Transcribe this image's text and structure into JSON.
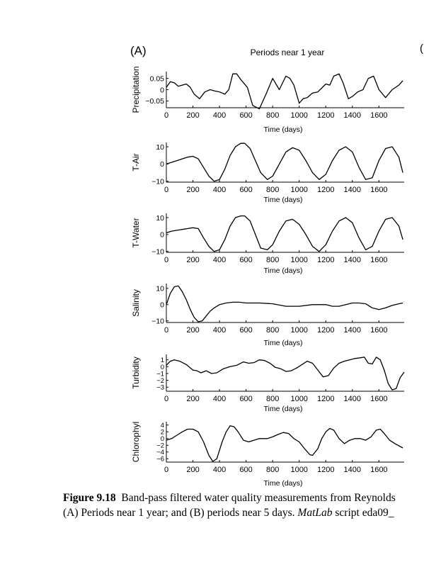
{
  "panel_label": "(A)",
  "panel_b_label": "(",
  "panel_title": "Periods near 1 year",
  "caption": {
    "label": "Figure 9.18",
    "line1_rest": "  Band-pass filtered water quality measurements from Reynolds",
    "line2_a": "(A) Periods near 1 year; and (B) periods near 5 days. ",
    "line2_italic": "MatLab",
    "line2_b": " script eda09_"
  },
  "chart_data": [
    {
      "type": "line",
      "ylabel": "Precipitation",
      "xlabel": "Time (days)",
      "xlim": [
        0,
        1790
      ],
      "xticks": [
        0,
        200,
        400,
        600,
        800,
        1000,
        1200,
        1400,
        1600
      ],
      "ylim": [
        -0.08,
        0.08
      ],
      "yticks": [
        0.05,
        0,
        -0.05
      ],
      "ytick_labels": [
        "0.05",
        "0",
        "−0.05"
      ],
      "x": [
        0,
        30,
        60,
        90,
        120,
        150,
        180,
        210,
        250,
        290,
        330,
        360,
        400,
        440,
        470,
        500,
        530,
        560,
        610,
        650,
        700,
        750,
        800,
        850,
        900,
        930,
        960,
        1000,
        1030,
        1060,
        1100,
        1140,
        1200,
        1230,
        1260,
        1300,
        1330,
        1370,
        1400,
        1440,
        1480,
        1520,
        1560,
        1600,
        1650,
        1700,
        1750,
        1780
      ],
      "series": [
        {
          "values": [
            0.01,
            0.035,
            0.03,
            0.015,
            0.02,
            0.025,
            0.01,
            -0.02,
            -0.04,
            -0.01,
            0.0,
            -0.005,
            -0.01,
            -0.02,
            0.0,
            0.07,
            0.07,
            0.045,
            0.01,
            -0.07,
            -0.085,
            -0.02,
            0.05,
            0.0,
            0.06,
            0.05,
            0.02,
            -0.06,
            -0.04,
            -0.035,
            -0.015,
            -0.01,
            0.025,
            0.02,
            0.06,
            0.07,
            0.03,
            -0.04,
            -0.03,
            -0.01,
            0.0,
            0.05,
            0.06,
            0.0,
            -0.035,
            0.0,
            0.02,
            0.04
          ]
        }
      ]
    },
    {
      "type": "line",
      "ylabel": "T-Air",
      "xlabel": "Time (days)",
      "xlim": [
        0,
        1790
      ],
      "xticks": [
        0,
        200,
        400,
        600,
        800,
        1000,
        1200,
        1400,
        1600
      ],
      "ylim": [
        -10.5,
        12.5
      ],
      "yticks": [
        10,
        0,
        -10
      ],
      "ytick_labels": [
        "10",
        "0",
        "−10"
      ],
      "x": [
        0,
        40,
        80,
        120,
        160,
        200,
        240,
        280,
        320,
        360,
        400,
        440,
        480,
        520,
        560,
        590,
        630,
        670,
        710,
        760,
        800,
        850,
        900,
        950,
        1000,
        1050,
        1100,
        1150,
        1200,
        1250,
        1300,
        1350,
        1400,
        1450,
        1500,
        1550,
        1600,
        1650,
        1700,
        1750,
        1780
      ],
      "series": [
        {
          "values": [
            0,
            1,
            2,
            3,
            4,
            4.5,
            3,
            -2,
            -7,
            -10,
            -9,
            -3,
            5,
            10,
            12,
            12,
            9,
            2,
            -5,
            -9,
            -7,
            0,
            7,
            9.5,
            8,
            2,
            -5,
            -9,
            -6,
            2,
            8,
            10,
            7,
            -2,
            -9,
            -8,
            2,
            9,
            10,
            4,
            -5
          ]
        }
      ]
    },
    {
      "type": "line",
      "ylabel": "T-Water",
      "xlabel": "Time (days)",
      "xlim": [
        0,
        1790
      ],
      "xticks": [
        0,
        200,
        400,
        600,
        800,
        1000,
        1200,
        1400,
        1600
      ],
      "ylim": [
        -10.5,
        12.5
      ],
      "yticks": [
        10,
        0,
        -10
      ],
      "ytick_labels": [
        "10",
        "0",
        "−10"
      ],
      "x": [
        0,
        40,
        80,
        120,
        160,
        200,
        240,
        280,
        320,
        360,
        400,
        440,
        480,
        520,
        560,
        590,
        630,
        670,
        710,
        760,
        800,
        850,
        900,
        950,
        1000,
        1050,
        1100,
        1150,
        1200,
        1250,
        1300,
        1350,
        1400,
        1450,
        1500,
        1550,
        1600,
        1650,
        1700,
        1750,
        1780
      ],
      "series": [
        {
          "values": [
            1,
            2,
            2.5,
            3,
            3.5,
            4,
            3.5,
            -2,
            -7,
            -10,
            -9,
            -3,
            5,
            10,
            11,
            11,
            8,
            0,
            -8,
            -9,
            -6,
            2,
            8,
            9,
            6,
            0,
            -7,
            -10,
            -6,
            2,
            8,
            10,
            7,
            -2,
            -9,
            -7,
            2,
            9,
            10,
            5,
            -3
          ]
        }
      ]
    },
    {
      "type": "line",
      "ylabel": "Salinity",
      "xlabel": "Time (days)",
      "xlim": [
        0,
        1790
      ],
      "xticks": [
        0,
        200,
        400,
        600,
        800,
        1000,
        1200,
        1400,
        1600
      ],
      "ylim": [
        -11,
        13
      ],
      "yticks": [
        10,
        0,
        -10
      ],
      "ytick_labels": [
        "10",
        "0",
        "−10"
      ],
      "x": [
        0,
        30,
        60,
        90,
        120,
        150,
        180,
        210,
        240,
        270,
        300,
        330,
        360,
        400,
        450,
        500,
        550,
        600,
        700,
        800,
        900,
        1000,
        1100,
        1200,
        1250,
        1300,
        1400,
        1450,
        1500,
        1550,
        1600,
        1650,
        1700,
        1750,
        1780
      ],
      "series": [
        {
          "values": [
            0,
            7,
            11,
            11.5,
            8,
            3,
            -3,
            -8,
            -10.5,
            -10,
            -7,
            -4,
            -2,
            0,
            1,
            1.5,
            1.5,
            1,
            1,
            0.5,
            -1,
            -1,
            0,
            0,
            -1,
            -1,
            1,
            1,
            0.5,
            -2,
            -3,
            -2,
            -0.5,
            0.5,
            1
          ]
        }
      ]
    },
    {
      "type": "line",
      "ylabel": "Turbidity",
      "xlabel": "Time (days)",
      "xlim": [
        0,
        1790
      ],
      "xticks": [
        0,
        200,
        400,
        600,
        800,
        1000,
        1200,
        1400,
        1600
      ],
      "ylim": [
        -3.6,
        1.8
      ],
      "yticks": [
        1,
        0,
        -1,
        -2,
        -3
      ],
      "ytick_labels": [
        "1",
        "0",
        "−1",
        "−2",
        "−3"
      ],
      "x": [
        0,
        30,
        60,
        100,
        150,
        200,
        230,
        260,
        300,
        340,
        380,
        430,
        480,
        530,
        580,
        620,
        660,
        700,
        740,
        780,
        820,
        860,
        900,
        940,
        980,
        1020,
        1060,
        1100,
        1140,
        1180,
        1220,
        1260,
        1300,
        1340,
        1380,
        1420,
        1460,
        1490,
        1520,
        1550,
        1580,
        1610,
        1640,
        1670,
        1700,
        1730,
        1760,
        1790
      ],
      "series": [
        {
          "values": [
            0.2,
            0.8,
            1.0,
            0.8,
            0.3,
            -0.5,
            -0.6,
            -0.9,
            -0.6,
            -1.0,
            -0.9,
            -0.3,
            0.0,
            0.2,
            0.7,
            0.5,
            0.6,
            1.0,
            0.9,
            0.5,
            -0.1,
            -0.3,
            -0.7,
            -0.6,
            -0.2,
            0.3,
            0.8,
            0.5,
            -0.5,
            -1.5,
            -1.3,
            -0.2,
            0.5,
            0.8,
            1.0,
            1.2,
            1.3,
            1.4,
            0.5,
            0.4,
            1.4,
            1.0,
            -0.5,
            -2.5,
            -3.4,
            -3.2,
            -1.6,
            -0.8
          ]
        }
      ]
    },
    {
      "type": "line",
      "ylabel": "Chlorophyl",
      "xlabel": "Time (days)",
      "xlim": [
        0,
        1790
      ],
      "xticks": [
        0,
        200,
        400,
        600,
        800,
        1000,
        1200,
        1400,
        1600
      ],
      "ylim": [
        -7,
        5
      ],
      "yticks": [
        4,
        2,
        0,
        -2,
        -4,
        -6
      ],
      "ytick_labels": [
        "4",
        "2",
        "0",
        "−2",
        "−4",
        "−6"
      ],
      "x": [
        0,
        40,
        80,
        120,
        160,
        200,
        240,
        280,
        320,
        350,
        380,
        420,
        450,
        480,
        510,
        540,
        580,
        620,
        660,
        700,
        760,
        800,
        840,
        880,
        920,
        960,
        1000,
        1040,
        1080,
        1100,
        1140,
        1170,
        1200,
        1230,
        1260,
        1300,
        1340,
        1380,
        1420,
        1460,
        1500,
        1540,
        1580,
        1610,
        1640,
        1680,
        1720,
        1780
      ],
      "series": [
        {
          "values": [
            -0.5,
            0,
            1,
            2,
            2.8,
            2.8,
            2,
            -1,
            -5,
            -6.8,
            -6,
            -1,
            2,
            3.8,
            3.5,
            2,
            -0.5,
            -1,
            -0.5,
            0,
            0,
            0.5,
            1.2,
            1.8,
            1.5,
            0,
            -1,
            -3,
            -4.8,
            -5,
            -3,
            0,
            2,
            3,
            2.5,
            0,
            -1.5,
            -0.5,
            0,
            0,
            -0.5,
            0.5,
            2.5,
            2.8,
            1.5,
            -0.5,
            -1.5,
            -2.8
          ]
        }
      ]
    }
  ]
}
